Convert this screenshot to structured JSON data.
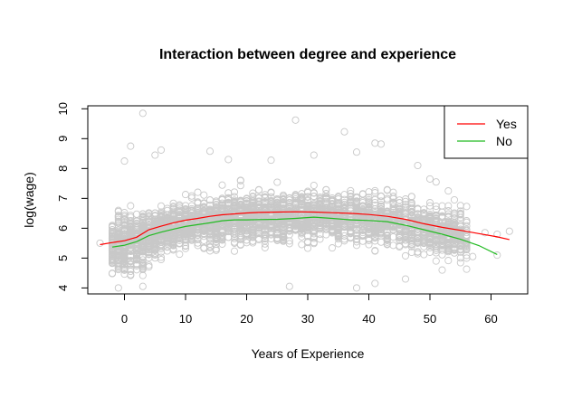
{
  "chart_data": {
    "type": "scatter",
    "title": "Interaction between degree and experience",
    "xlabel": "Years of Experience",
    "ylabel": "log(wage)",
    "xlim": [
      -6,
      66
    ],
    "ylim": [
      3.8,
      10.1
    ],
    "x_ticks": [
      0,
      10,
      20,
      30,
      40,
      50,
      60
    ],
    "y_ticks": [
      4,
      5,
      6,
      7,
      8,
      9,
      10
    ],
    "grid": false,
    "legend_position": "top-right",
    "point_color": "#c8c8c8",
    "scatter_outliers": [
      {
        "x": 3,
        "y": 9.85
      },
      {
        "x": 28,
        "y": 9.62
      },
      {
        "x": 36,
        "y": 9.23
      },
      {
        "x": 1,
        "y": 8.75
      },
      {
        "x": 6,
        "y": 8.62
      },
      {
        "x": 14,
        "y": 8.58
      },
      {
        "x": 41,
        "y": 8.85
      },
      {
        "x": 42,
        "y": 8.82
      },
      {
        "x": 48,
        "y": 8.1
      },
      {
        "x": 0,
        "y": 8.25
      },
      {
        "x": 5,
        "y": 8.45
      },
      {
        "x": 17,
        "y": 8.3
      },
      {
        "x": 24,
        "y": 8.28
      },
      {
        "x": 31,
        "y": 8.45
      },
      {
        "x": 38,
        "y": 8.55
      },
      {
        "x": -1,
        "y": 4.0
      },
      {
        "x": 3,
        "y": 4.05
      },
      {
        "x": 27,
        "y": 4.05
      },
      {
        "x": 38,
        "y": 4.0
      },
      {
        "x": 41,
        "y": 4.15
      },
      {
        "x": 46,
        "y": 4.3
      },
      {
        "x": 52,
        "y": 4.6
      },
      {
        "x": 57,
        "y": 5.05
      },
      {
        "x": 61,
        "y": 5.1
      },
      {
        "x": 63,
        "y": 5.9
      },
      {
        "x": 61,
        "y": 5.8
      },
      {
        "x": 59,
        "y": 5.85
      },
      {
        "x": -4,
        "y": 5.5
      },
      {
        "x": -2,
        "y": 4.9
      },
      {
        "x": 54,
        "y": 6.95
      },
      {
        "x": 55,
        "y": 6.5
      },
      {
        "x": 56,
        "y": 6.25
      },
      {
        "x": 51,
        "y": 7.55
      },
      {
        "x": 50,
        "y": 7.65
      },
      {
        "x": 53,
        "y": 7.25
      }
    ],
    "series": [
      {
        "name": "Yes",
        "color": "#ff0000",
        "points": [
          {
            "x": -4,
            "y": 5.45
          },
          {
            "x": -2,
            "y": 5.52
          },
          {
            "x": 0,
            "y": 5.58
          },
          {
            "x": 2,
            "y": 5.7
          },
          {
            "x": 4,
            "y": 5.95
          },
          {
            "x": 6,
            "y": 6.07
          },
          {
            "x": 8,
            "y": 6.18
          },
          {
            "x": 10,
            "y": 6.27
          },
          {
            "x": 12,
            "y": 6.33
          },
          {
            "x": 14,
            "y": 6.4
          },
          {
            "x": 16,
            "y": 6.45
          },
          {
            "x": 18,
            "y": 6.48
          },
          {
            "x": 20,
            "y": 6.51
          },
          {
            "x": 22,
            "y": 6.53
          },
          {
            "x": 25,
            "y": 6.54
          },
          {
            "x": 28,
            "y": 6.55
          },
          {
            "x": 31,
            "y": 6.54
          },
          {
            "x": 34,
            "y": 6.52
          },
          {
            "x": 37,
            "y": 6.5
          },
          {
            "x": 40,
            "y": 6.46
          },
          {
            "x": 43,
            "y": 6.4
          },
          {
            "x": 46,
            "y": 6.3
          },
          {
            "x": 49,
            "y": 6.15
          },
          {
            "x": 52,
            "y": 6.03
          },
          {
            "x": 55,
            "y": 5.93
          },
          {
            "x": 58,
            "y": 5.82
          },
          {
            "x": 61,
            "y": 5.71
          },
          {
            "x": 63,
            "y": 5.62
          }
        ]
      },
      {
        "name": "No",
        "color": "#22bb22",
        "points": [
          {
            "x": -2,
            "y": 5.37
          },
          {
            "x": 0,
            "y": 5.43
          },
          {
            "x": 2,
            "y": 5.55
          },
          {
            "x": 4,
            "y": 5.75
          },
          {
            "x": 6,
            "y": 5.87
          },
          {
            "x": 8,
            "y": 5.97
          },
          {
            "x": 10,
            "y": 6.06
          },
          {
            "x": 12,
            "y": 6.12
          },
          {
            "x": 14,
            "y": 6.18
          },
          {
            "x": 16,
            "y": 6.25
          },
          {
            "x": 18,
            "y": 6.28
          },
          {
            "x": 20,
            "y": 6.28
          },
          {
            "x": 22,
            "y": 6.29
          },
          {
            "x": 25,
            "y": 6.3
          },
          {
            "x": 28,
            "y": 6.33
          },
          {
            "x": 31,
            "y": 6.37
          },
          {
            "x": 34,
            "y": 6.33
          },
          {
            "x": 37,
            "y": 6.28
          },
          {
            "x": 40,
            "y": 6.26
          },
          {
            "x": 43,
            "y": 6.22
          },
          {
            "x": 46,
            "y": 6.1
          },
          {
            "x": 49,
            "y": 5.95
          },
          {
            "x": 52,
            "y": 5.8
          },
          {
            "x": 55,
            "y": 5.63
          },
          {
            "x": 58,
            "y": 5.42
          },
          {
            "x": 61,
            "y": 5.12
          }
        ]
      }
    ]
  }
}
